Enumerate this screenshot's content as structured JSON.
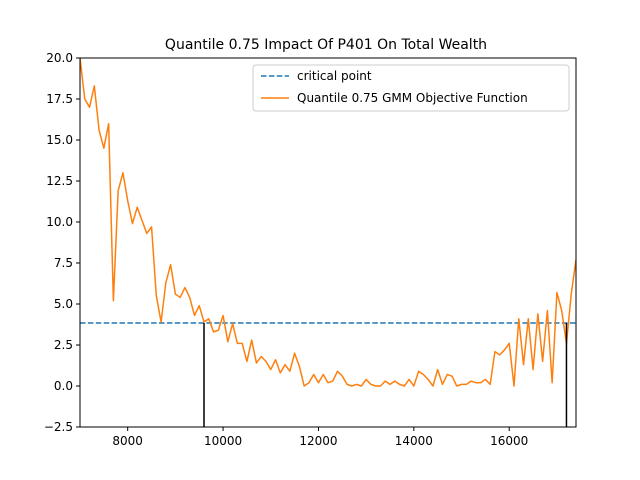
{
  "chart_data": {
    "type": "line",
    "title": "Quantile 0.75 Impact Of P401 On Total Wealth",
    "xlabel": "",
    "ylabel": "",
    "xlim": [
      7000,
      17400
    ],
    "ylim": [
      -2.5,
      20.0
    ],
    "xticks": [
      8000,
      10000,
      12000,
      14000,
      16000
    ],
    "yticks": [
      -2.5,
      0.0,
      2.5,
      5.0,
      7.5,
      10.0,
      12.5,
      15.0,
      17.5,
      20.0
    ],
    "xtick_labels": [
      "8000",
      "10000",
      "12000",
      "14000",
      "16000"
    ],
    "ytick_labels": [
      "−2.5",
      "0.0",
      "2.5",
      "5.0",
      "7.5",
      "10.0",
      "12.5",
      "15.0",
      "17.5",
      "20.0"
    ],
    "grid": false,
    "legend": {
      "position": "top-right"
    },
    "series": [
      {
        "name": "critical point",
        "kind": "hline",
        "style": "dashed",
        "color": "#1f77b4",
        "y": 3.84
      },
      {
        "name": "Quantile 0.75 GMM Objective Function",
        "kind": "line",
        "style": "solid",
        "color": "#ff7f0e",
        "x": [
          7000,
          7100,
          7200,
          7300,
          7400,
          7500,
          7600,
          7700,
          7800,
          7900,
          8000,
          8100,
          8200,
          8300,
          8400,
          8500,
          8600,
          8700,
          8800,
          8900,
          9000,
          9100,
          9200,
          9300,
          9400,
          9500,
          9600,
          9700,
          9800,
          9900,
          10000,
          10100,
          10200,
          10300,
          10400,
          10500,
          10600,
          10700,
          10800,
          10900,
          11000,
          11100,
          11200,
          11300,
          11400,
          11500,
          11600,
          11700,
          11800,
          11900,
          12000,
          12100,
          12200,
          12300,
          12400,
          12500,
          12600,
          12700,
          12800,
          12900,
          13000,
          13100,
          13200,
          13300,
          13400,
          13500,
          13600,
          13700,
          13800,
          13900,
          14000,
          14100,
          14200,
          14300,
          14400,
          14500,
          14600,
          14700,
          14800,
          14900,
          15000,
          15100,
          15200,
          15300,
          15400,
          15500,
          15600,
          15700,
          15800,
          15900,
          16000,
          16100,
          16200,
          16300,
          16400,
          16500,
          16600,
          16700,
          16800,
          16900,
          17000,
          17100,
          17200,
          17300,
          17400
        ],
        "y": [
          20.0,
          17.5,
          17.0,
          18.3,
          15.6,
          14.5,
          16.0,
          5.2,
          11.9,
          13.0,
          11.3,
          9.9,
          10.9,
          10.1,
          9.3,
          9.7,
          5.5,
          3.9,
          6.3,
          7.4,
          5.6,
          5.4,
          6.0,
          5.4,
          4.3,
          4.9,
          3.9,
          4.1,
          3.3,
          3.4,
          4.3,
          2.7,
          3.8,
          2.6,
          2.6,
          1.5,
          2.8,
          1.4,
          1.8,
          1.5,
          1.0,
          1.6,
          0.8,
          1.3,
          0.9,
          2.0,
          1.2,
          0.0,
          0.2,
          0.7,
          0.2,
          0.7,
          0.2,
          0.3,
          0.9,
          0.6,
          0.1,
          0.0,
          0.1,
          0.0,
          0.4,
          0.1,
          0.0,
          0.0,
          0.3,
          0.1,
          0.3,
          0.1,
          0.0,
          0.4,
          0.0,
          0.9,
          0.7,
          0.4,
          0.0,
          1.0,
          0.1,
          0.7,
          0.6,
          0.0,
          0.1,
          0.1,
          0.3,
          0.2,
          0.2,
          0.4,
          0.1,
          2.1,
          1.9,
          2.2,
          2.6,
          0.0,
          4.1,
          1.3,
          4.1,
          1.0,
          4.4,
          1.5,
          4.6,
          0.2,
          5.7,
          4.6,
          2.6,
          5.6,
          7.7
        ]
      }
    ],
    "threshold_markers": [
      {
        "kind": "vline",
        "color": "#000000",
        "x": 9600,
        "y_top": 3.84
      },
      {
        "kind": "vline",
        "color": "#000000",
        "x": 17200,
        "y_top": 3.84
      }
    ]
  }
}
